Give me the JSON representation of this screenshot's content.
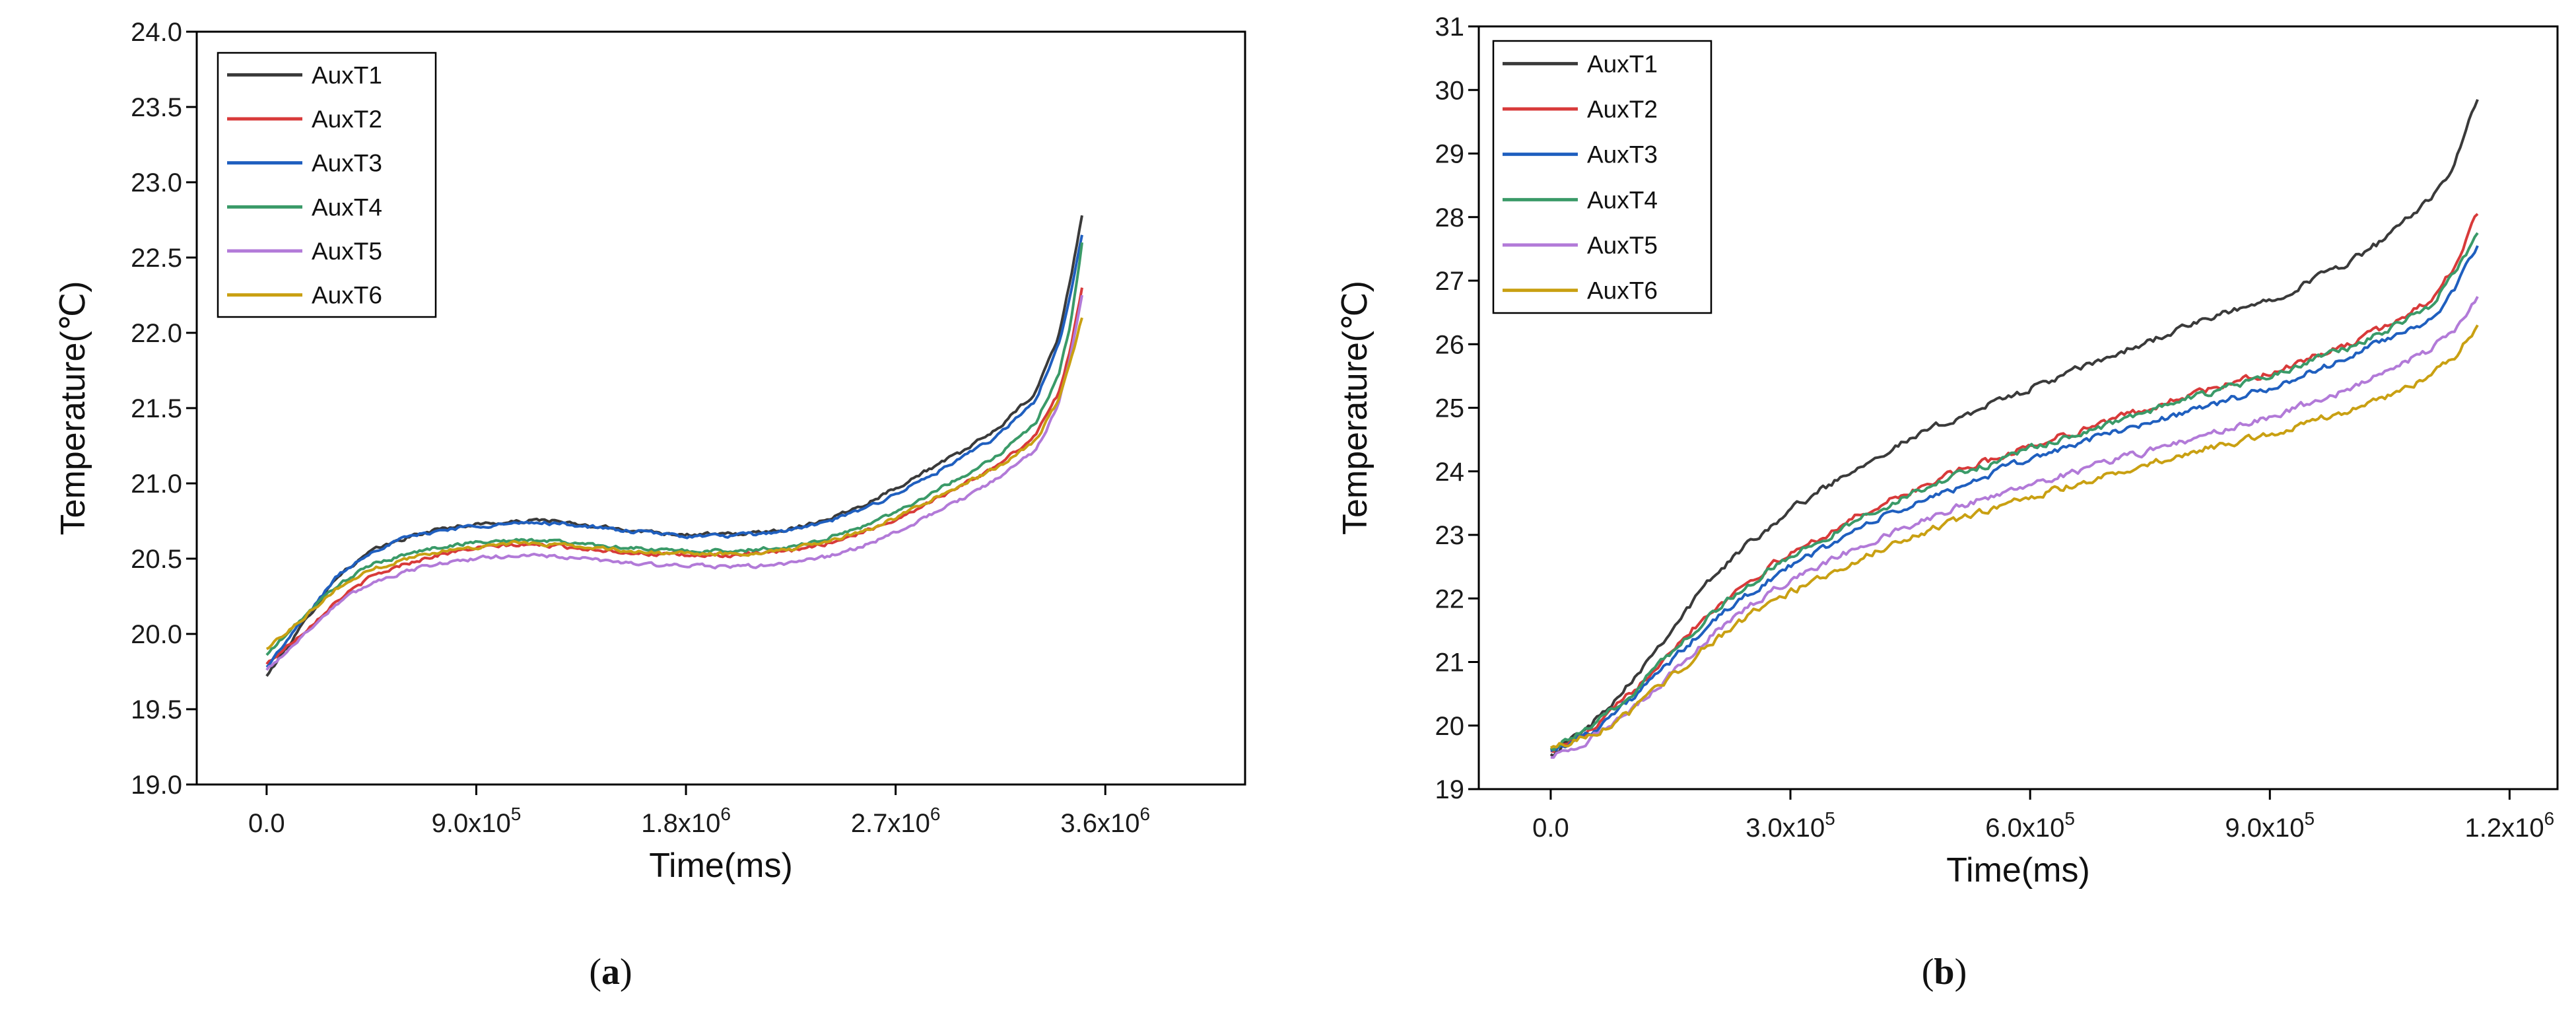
{
  "colors": {
    "AuxT1": "#3a3a3a",
    "AuxT2": "#d83a3a",
    "AuxT3": "#1f5fbf",
    "AuxT4": "#3a9a68",
    "AuxT5": "#b27ad8",
    "AuxT6": "#c9a012"
  },
  "chart_data": [
    {
      "type": "line",
      "panel": "a",
      "caption_open": "(",
      "caption_letter": "a",
      "caption_close": ")",
      "title": "",
      "xlabel": "Time(ms)",
      "ylabel": "Temperature(℃)",
      "xlim": [
        -300000,
        4200000
      ],
      "ylim": [
        19.0,
        24.0
      ],
      "xticks": [
        0,
        900000,
        1800000,
        2700000,
        3600000
      ],
      "xtick_labels": [
        {
          "base": "0.0",
          "exp": ""
        },
        {
          "base": "9.0x10",
          "exp": "5"
        },
        {
          "base": "1.8x10",
          "exp": "6"
        },
        {
          "base": "2.7x10",
          "exp": "6"
        },
        {
          "base": "3.6x10",
          "exp": "6"
        }
      ],
      "yticks": [
        19.0,
        19.5,
        20.0,
        20.5,
        21.0,
        21.5,
        22.0,
        22.5,
        23.0,
        23.5,
        24.0
      ],
      "ytick_labels": [
        "19.0",
        "19.5",
        "20.0",
        "20.5",
        "21.0",
        "21.5",
        "22.0",
        "22.5",
        "23.0",
        "23.5",
        "24.0"
      ],
      "legend_position": "top-left",
      "x": [
        0,
        150000,
        300000,
        450000,
        600000,
        750000,
        900000,
        1050000,
        1200000,
        1350000,
        1500000,
        1650000,
        1800000,
        1950000,
        2100000,
        2250000,
        2400000,
        2550000,
        2700000,
        2850000,
        3000000,
        3150000,
        3300000,
        3400000,
        3450000,
        3500000
      ],
      "series": [
        {
          "name": "AuxT1",
          "values": [
            19.72,
            20.05,
            20.38,
            20.55,
            20.64,
            20.7,
            20.73,
            20.74,
            20.76,
            20.72,
            20.7,
            20.68,
            20.66,
            20.66,
            20.67,
            20.7,
            20.76,
            20.85,
            20.97,
            21.1,
            21.22,
            21.38,
            21.6,
            21.98,
            22.35,
            22.78
          ]
        },
        {
          "name": "AuxT2",
          "values": [
            19.8,
            20.0,
            20.22,
            20.38,
            20.47,
            20.53,
            20.57,
            20.59,
            20.59,
            20.57,
            20.55,
            20.53,
            20.52,
            20.52,
            20.53,
            20.55,
            20.6,
            20.67,
            20.76,
            20.88,
            21.0,
            21.13,
            21.32,
            21.6,
            21.9,
            22.3
          ]
        },
        {
          "name": "AuxT3",
          "values": [
            19.78,
            20.08,
            20.38,
            20.55,
            20.64,
            20.69,
            20.72,
            20.73,
            20.74,
            20.72,
            20.69,
            20.67,
            20.65,
            20.65,
            20.66,
            20.69,
            20.74,
            20.82,
            20.93,
            21.05,
            21.18,
            21.33,
            21.55,
            21.92,
            22.25,
            22.65
          ]
        },
        {
          "name": "AuxT4",
          "values": [
            19.86,
            20.1,
            20.32,
            20.46,
            20.53,
            20.58,
            20.61,
            20.62,
            20.62,
            20.6,
            20.58,
            20.56,
            20.55,
            20.55,
            20.56,
            20.58,
            20.63,
            20.71,
            20.81,
            20.93,
            21.06,
            21.2,
            21.4,
            21.72,
            22.05,
            22.6
          ]
        },
        {
          "name": "AuxT5",
          "values": [
            19.76,
            19.98,
            20.2,
            20.34,
            20.42,
            20.47,
            20.5,
            20.52,
            20.52,
            20.5,
            20.48,
            20.46,
            20.45,
            20.45,
            20.45,
            20.47,
            20.51,
            20.58,
            20.67,
            20.79,
            20.91,
            21.04,
            21.22,
            21.52,
            21.85,
            22.25
          ]
        },
        {
          "name": "AuxT6",
          "values": [
            19.9,
            20.1,
            20.3,
            20.43,
            20.5,
            20.55,
            20.58,
            20.6,
            20.6,
            20.58,
            20.56,
            20.54,
            20.53,
            20.53,
            20.54,
            20.56,
            20.61,
            20.68,
            20.77,
            20.89,
            21.0,
            21.12,
            21.28,
            21.55,
            21.8,
            22.1
          ]
        }
      ]
    },
    {
      "type": "line",
      "panel": "b",
      "caption_open": "(",
      "caption_letter": "b",
      "caption_close": ")",
      "title": "",
      "xlabel": "Time(ms)",
      "ylabel": "Temperature(℃)",
      "xlim": [
        -90000,
        1260000
      ],
      "ylim": [
        19,
        31
      ],
      "xticks": [
        0,
        300000,
        600000,
        900000,
        1200000
      ],
      "xtick_labels": [
        {
          "base": "0.0",
          "exp": ""
        },
        {
          "base": "3.0x10",
          "exp": "5"
        },
        {
          "base": "6.0x10",
          "exp": "5"
        },
        {
          "base": "9.0x10",
          "exp": "5"
        },
        {
          "base": "1.2x10",
          "exp": "6"
        }
      ],
      "yticks": [
        19,
        20,
        21,
        22,
        23,
        24,
        25,
        26,
        27,
        28,
        29,
        30,
        31
      ],
      "ytick_labels": [
        "19",
        "20",
        "21",
        "22",
        "23",
        "24",
        "25",
        "26",
        "27",
        "28",
        "29",
        "30",
        "31"
      ],
      "legend_position": "top-left",
      "x": [
        0,
        50000,
        100000,
        150000,
        200000,
        250000,
        300000,
        400000,
        500000,
        600000,
        700000,
        800000,
        900000,
        1000000,
        1050000,
        1100000,
        1130000,
        1160000
      ],
      "series": [
        {
          "name": "AuxT1",
          "values": [
            19.55,
            20.0,
            20.7,
            21.5,
            22.3,
            22.9,
            23.4,
            24.2,
            24.8,
            25.3,
            25.8,
            26.3,
            26.7,
            27.3,
            27.7,
            28.3,
            28.8,
            29.85
          ]
        },
        {
          "name": "AuxT2",
          "values": [
            19.6,
            19.9,
            20.5,
            21.2,
            21.8,
            22.3,
            22.7,
            23.4,
            23.95,
            24.4,
            24.8,
            25.2,
            25.55,
            26.0,
            26.3,
            26.7,
            27.2,
            28.05
          ]
        },
        {
          "name": "AuxT3",
          "values": [
            19.6,
            19.9,
            20.4,
            21.0,
            21.6,
            22.1,
            22.5,
            23.2,
            23.7,
            24.2,
            24.6,
            24.95,
            25.3,
            25.8,
            26.1,
            26.4,
            26.8,
            27.55
          ]
        },
        {
          "name": "AuxT4",
          "values": [
            19.65,
            19.95,
            20.5,
            21.15,
            21.75,
            22.25,
            22.65,
            23.35,
            23.9,
            24.35,
            24.75,
            25.15,
            25.5,
            25.95,
            26.25,
            26.6,
            27.1,
            27.75
          ]
        },
        {
          "name": "AuxT5",
          "values": [
            19.5,
            19.8,
            20.2,
            20.8,
            21.4,
            21.9,
            22.3,
            22.9,
            23.4,
            23.8,
            24.15,
            24.5,
            24.85,
            25.3,
            25.6,
            25.9,
            26.2,
            26.75
          ]
        },
        {
          "name": "AuxT6",
          "values": [
            19.65,
            19.85,
            20.2,
            20.75,
            21.3,
            21.75,
            22.1,
            22.7,
            23.2,
            23.6,
            23.95,
            24.3,
            24.6,
            24.95,
            25.2,
            25.5,
            25.8,
            26.3
          ]
        }
      ]
    }
  ]
}
